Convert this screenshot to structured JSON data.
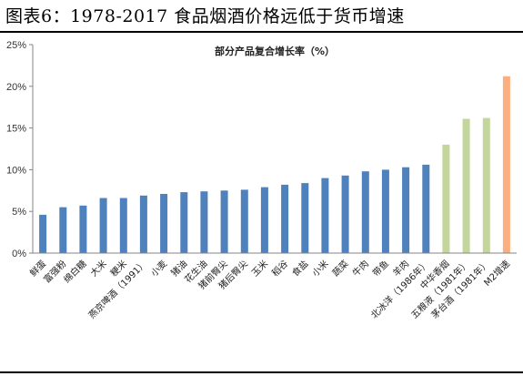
{
  "figure_title": "图表6：1978-2017 食品烟酒价格远低于货币增速",
  "colors": {
    "blue": "#4f81bd",
    "green": "#c3d69b",
    "orange": "#fbae7f"
  },
  "chart_data": {
    "type": "bar",
    "title": "部分产品复合增长率（%）",
    "xlabel": "",
    "ylabel": "",
    "ylim": [
      0,
      25
    ],
    "yticks": [
      "0%",
      "5%",
      "10%",
      "15%",
      "20%",
      "25%"
    ],
    "grid": false,
    "legend": "none",
    "categories": [
      "鲜蛋",
      "富强粉",
      "绵白糖",
      "大米",
      "粳米",
      "燕京啤酒（1991）",
      "小麦",
      "猪油",
      "花生油",
      "猪前臀尖",
      "猪后臀尖",
      "玉米",
      "稻谷",
      "食盐",
      "小米",
      "蔬菜",
      "牛肉",
      "带鱼",
      "羊肉",
      "北冰洋（1986年）",
      "中华香烟",
      "五粮液（1981年）",
      "茅台酒（1981年）",
      "M2增速"
    ],
    "values": [
      4.6,
      5.5,
      5.7,
      6.6,
      6.6,
      6.9,
      7.1,
      7.3,
      7.4,
      7.5,
      7.6,
      7.9,
      8.2,
      8.4,
      9.0,
      9.3,
      9.8,
      10.0,
      10.3,
      10.6,
      13.0,
      16.1,
      16.2,
      21.2
    ],
    "bar_colors": [
      "blue",
      "blue",
      "blue",
      "blue",
      "blue",
      "blue",
      "blue",
      "blue",
      "blue",
      "blue",
      "blue",
      "blue",
      "blue",
      "blue",
      "blue",
      "blue",
      "blue",
      "blue",
      "blue",
      "blue",
      "green",
      "green",
      "green",
      "orange"
    ]
  }
}
